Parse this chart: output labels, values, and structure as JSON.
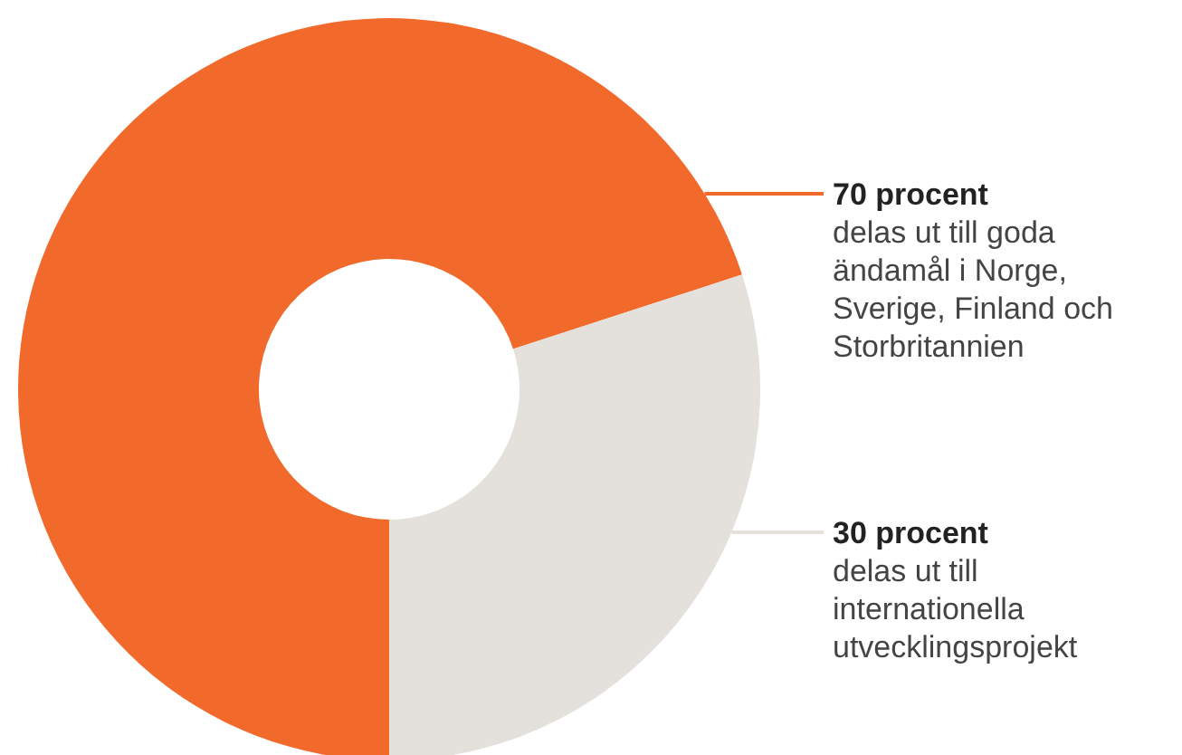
{
  "chart_data": {
    "type": "donut",
    "categories": [
      "delas ut till goda ändamål i Norge, Sverige, Finland och Storbritannien",
      "delas ut till internationella utvecklingsprojekt"
    ],
    "values": [
      70,
      30
    ],
    "value_labels": [
      "70 procent",
      "30 procent"
    ],
    "colors": [
      "#f26a2b",
      "#e4e1dc"
    ]
  }
}
